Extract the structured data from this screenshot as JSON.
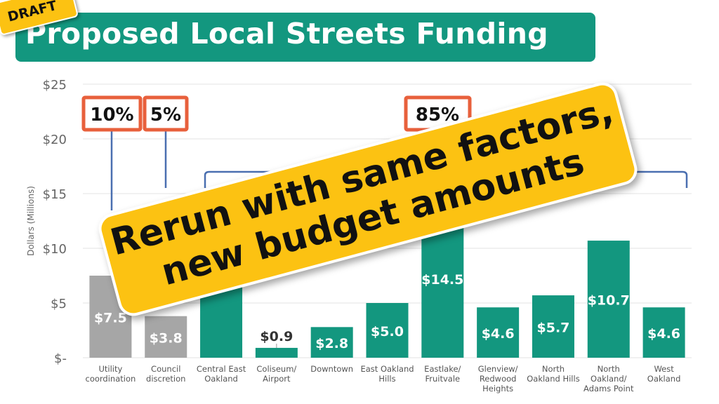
{
  "title": "Proposed Local Streets Funding",
  "draft_label": "DRAFT",
  "banner": {
    "line1": "Rerun with same factors,",
    "line2": "new budget amounts"
  },
  "annotations": {
    "pct_utility": "10%",
    "pct_council": "5%",
    "pct_neighborhoods": "85%"
  },
  "colors": {
    "title_bg": "#13977f",
    "bar_teal": "#13977f",
    "bar_gray": "#a6a6a6",
    "annotation_box": "#e8603c",
    "arrow": "#4a6fb0",
    "banner": "#fcc212"
  },
  "chart_data": {
    "type": "bar",
    "ylabel": "Dollars (Millions)",
    "ylim": [
      0,
      25
    ],
    "yticks": [
      0,
      5,
      10,
      15,
      20,
      25
    ],
    "ytick_labels": [
      "$-",
      "$5",
      "$10",
      "$15",
      "$20",
      "$25"
    ],
    "grid": true,
    "categories": [
      [
        "Utility",
        "coordination"
      ],
      [
        "Council",
        "discretion"
      ],
      [
        "Central East",
        "Oakland"
      ],
      [
        "Coliseum/",
        "Airport"
      ],
      [
        "Downtown"
      ],
      [
        "East Oakland",
        "Hills"
      ],
      [
        "Eastlake/",
        "Fruitvale"
      ],
      [
        "Glenview/",
        "Redwood",
        "Heights"
      ],
      [
        "North",
        "Oakland Hills"
      ],
      [
        "North",
        "Oakland/",
        "Adams Point"
      ],
      [
        "West",
        "Oakland"
      ]
    ],
    "values": [
      7.5,
      3.8,
      15.0,
      0.9,
      2.8,
      5.0,
      14.5,
      4.6,
      5.7,
      10.7,
      4.6
    ],
    "data_labels": [
      "$7.5",
      "$3.8",
      "",
      "$0.9",
      "$2.8",
      "$5.0",
      "$14.5",
      "$4.6",
      "$5.7",
      "$10.7",
      "$4.6"
    ],
    "bar_colors": [
      "gray",
      "gray",
      "teal",
      "teal",
      "teal",
      "teal",
      "teal",
      "teal",
      "teal",
      "teal",
      "teal"
    ]
  }
}
